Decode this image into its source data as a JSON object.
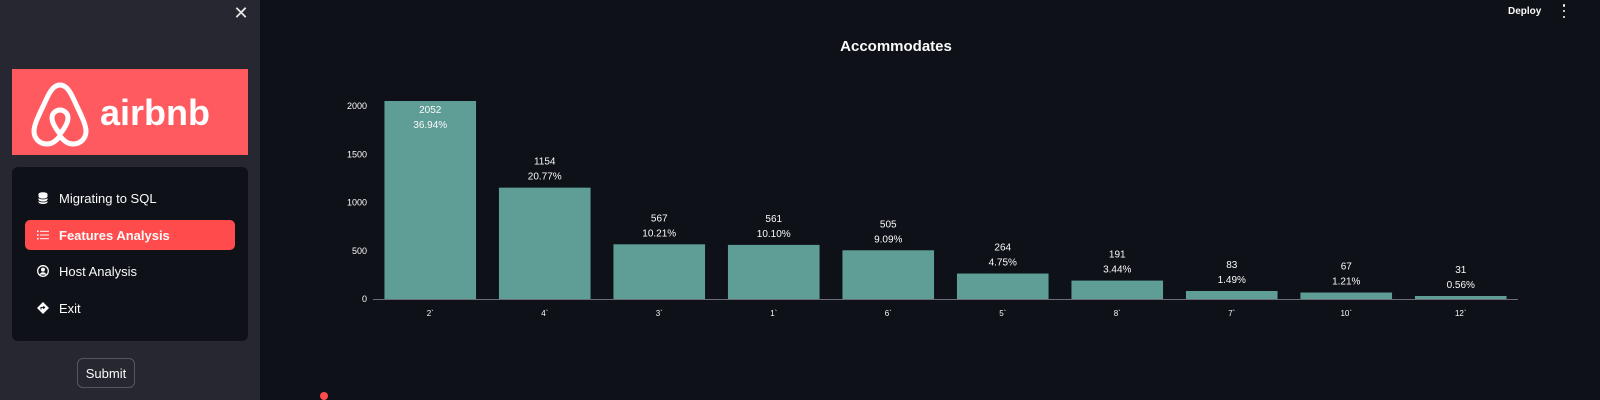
{
  "sidebar": {
    "logo_text": "airbnb",
    "brand_color": "#ff5a5f",
    "nav_items": [
      {
        "label": "Migrating to SQL",
        "icon": "database-icon",
        "active": false
      },
      {
        "label": "Features Analysis",
        "icon": "list-icon",
        "active": true
      },
      {
        "label": "Host Analysis",
        "icon": "person-circle-icon",
        "active": false
      },
      {
        "label": "Exit",
        "icon": "signpost-icon",
        "active": false
      }
    ],
    "submit_label": "Submit",
    "close_icon": "close-icon"
  },
  "header": {
    "deploy_label": "Deploy",
    "menu_icon": "more-vertical-icon"
  },
  "chart_data": {
    "type": "bar",
    "title": "Accommodates",
    "xlabel": "",
    "ylabel": "",
    "categories": [
      "2`",
      "4`",
      "3`",
      "1`",
      "6`",
      "5`",
      "8`",
      "7`",
      "10`",
      "12`"
    ],
    "values": [
      2052,
      1154,
      567,
      561,
      505,
      264,
      191,
      83,
      67,
      31
    ],
    "percent_labels": [
      "36.94%",
      "20.77%",
      "10.21%",
      "10.10%",
      "9.09%",
      "4.75%",
      "3.44%",
      "1.49%",
      "1.21%",
      "0.56%"
    ],
    "y_ticks": [
      0,
      500,
      1000,
      1500,
      2000
    ],
    "ylim": [
      0,
      2052
    ],
    "bar_color": "#5f9e96",
    "grid": false
  },
  "colors": {
    "background": "#0e1117",
    "sidebar": "#262730",
    "accent": "#ff4b4b"
  }
}
